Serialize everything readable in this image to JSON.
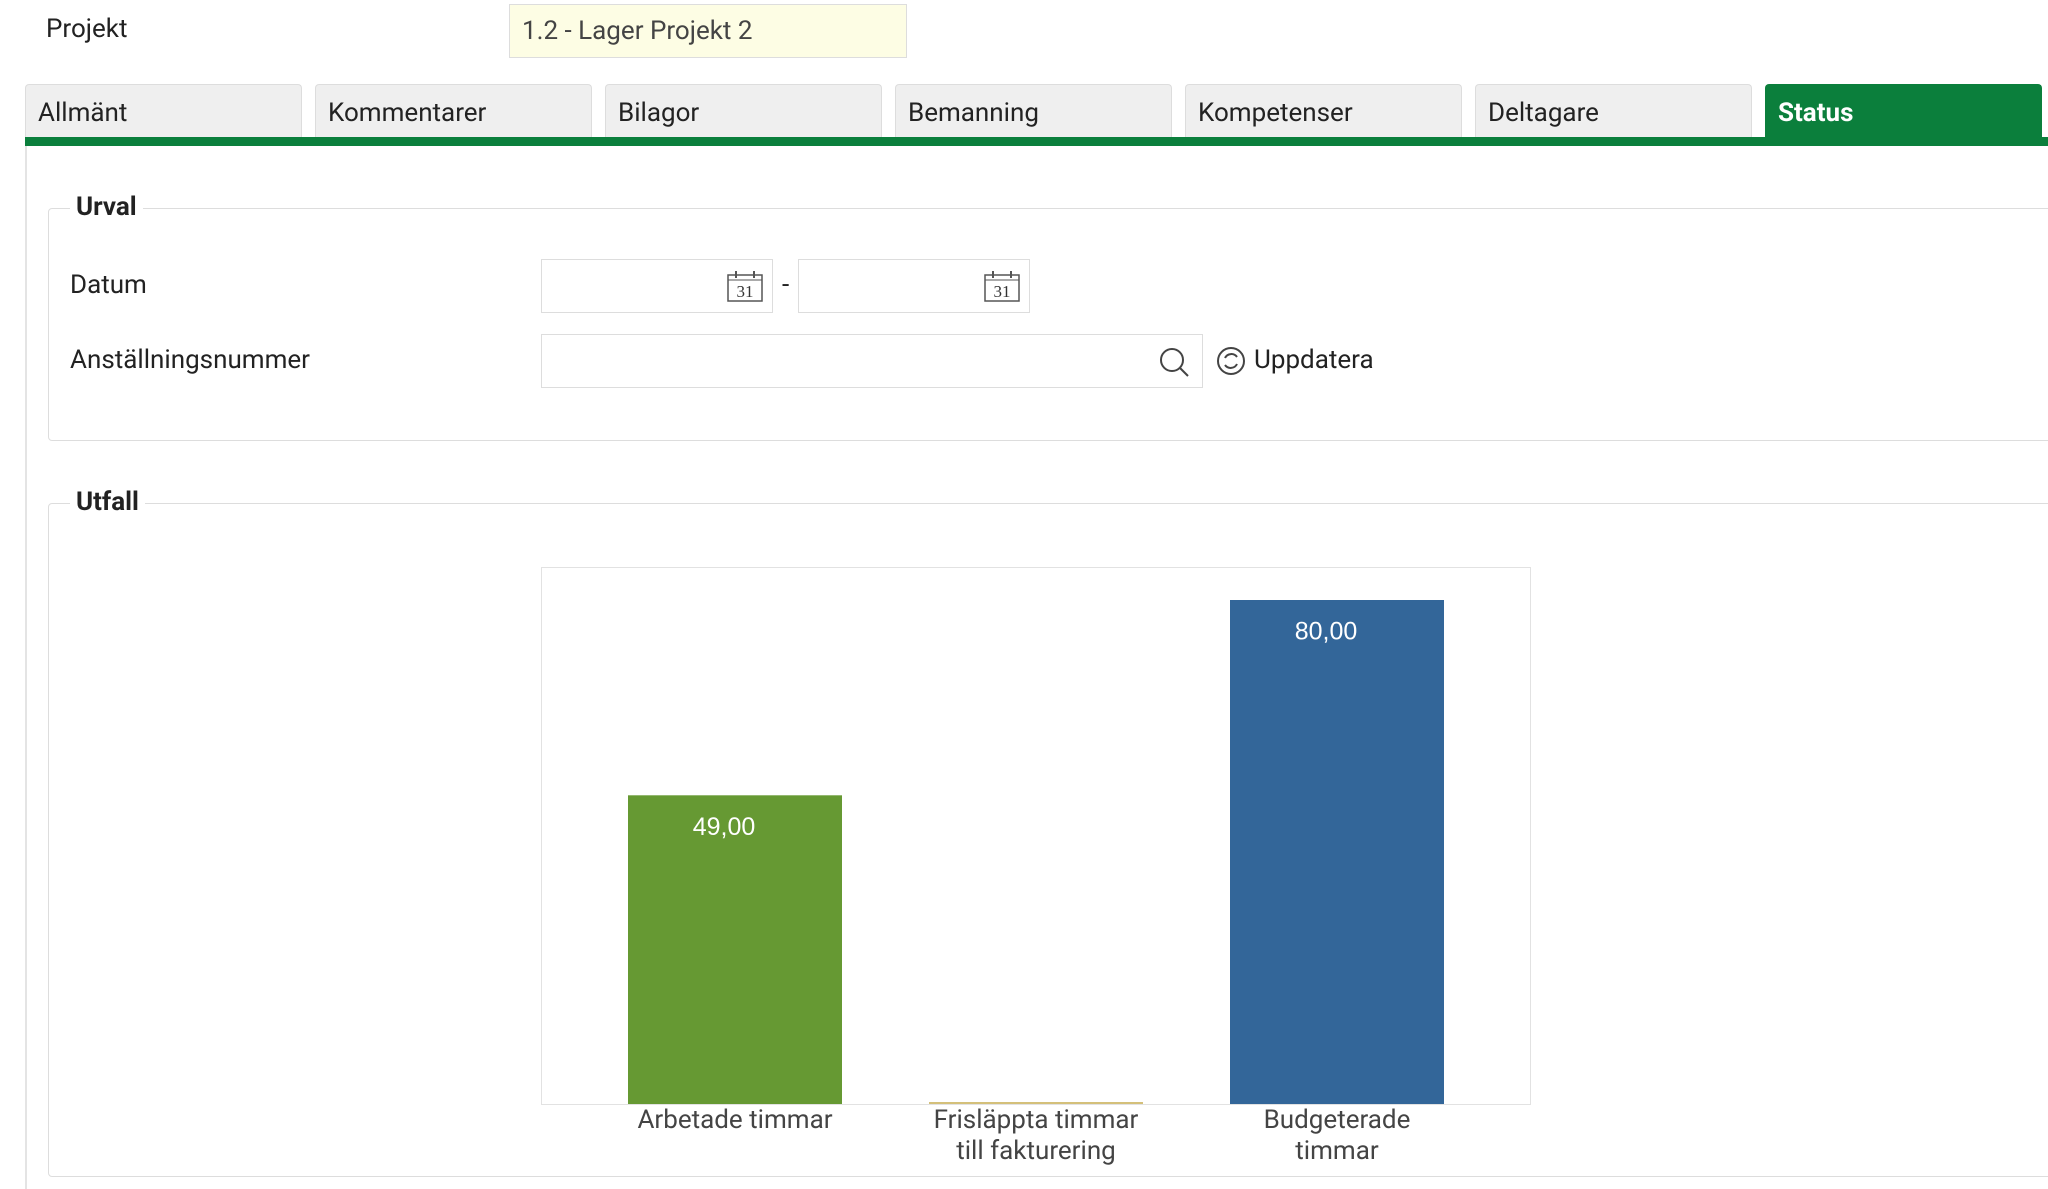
{
  "header": {
    "label": "Projekt",
    "value": "1.2 - Lager Projekt 2"
  },
  "tabs": [
    "Allmänt",
    "Kommentarer",
    "Bilagor",
    "Bemanning",
    "Kompetenser",
    "Deltagare",
    "Status"
  ],
  "active_tab": 6,
  "urval": {
    "legend": "Urval",
    "date_label": "Datum",
    "date_icon": "31",
    "date_separator": "-",
    "employee_label": "Anställningsnummer",
    "update_button": "Uppdatera"
  },
  "utfall": {
    "legend": "Utfall",
    "chart_data": {
      "type": "bar",
      "categories": [
        "Arbetade timmar",
        "Frisläppta timmar till fakturering",
        "Budgeterade timmar"
      ],
      "values": [
        49,
        0,
        80
      ],
      "value_labels": [
        "49,00",
        null,
        "80,00"
      ],
      "colors": [
        "#669933",
        "#d4c07a",
        "#336699"
      ]
    }
  }
}
